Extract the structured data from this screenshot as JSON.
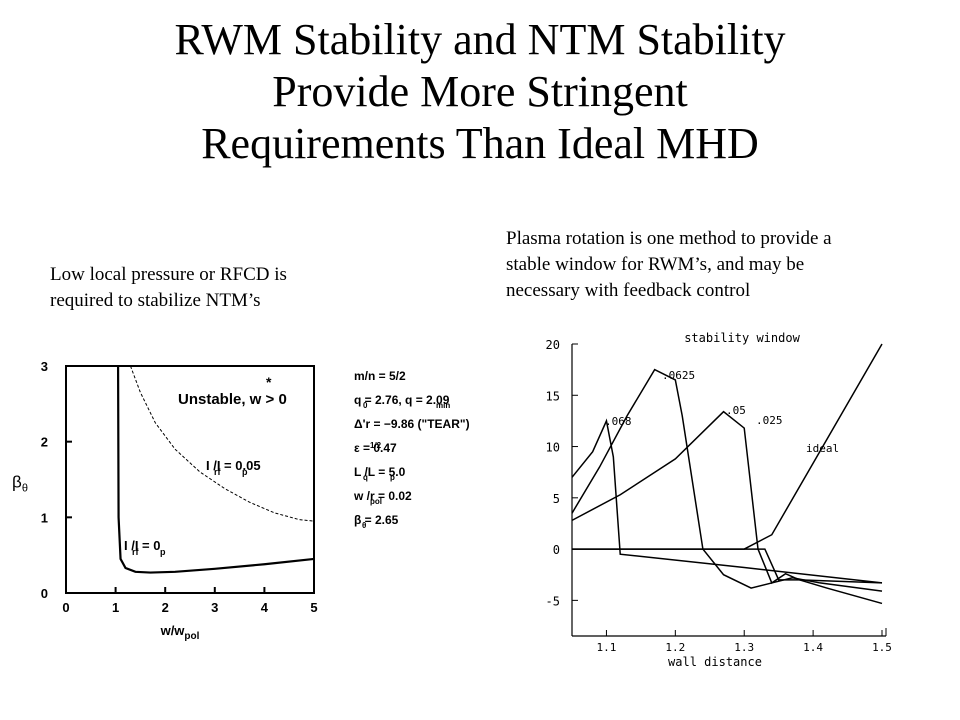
{
  "slide": {
    "title_lines": [
      "RWM Stability and NTM Stability",
      "Provide More Stringent",
      "Requirements Than Ideal MHD"
    ],
    "caption_left": [
      "Low local pressure or RFCD is",
      "required to stabilize NTM’s"
    ],
    "caption_right": [
      "Plasma rotation is one method to provide a",
      "stable window for RWM’s, and may be",
      "necessary with feedback control"
    ]
  },
  "chart_data": [
    {
      "type": "line",
      "xlabel": "w/w",
      "xlabel_sub": "pol",
      "ylabel": "β",
      "ylabel_sub": "θ",
      "xlim": [
        0,
        5
      ],
      "ylim": [
        0,
        3
      ],
      "x_ticks": [
        "0",
        "1",
        "2",
        "3",
        "4",
        "5"
      ],
      "y_ticks": [
        "0",
        "1",
        "2",
        "3"
      ],
      "annotations": {
        "unstable": "Unstable, w > 0",
        "label_005": "I  /I  = 0.05",
        "label_0": "I  /I  = 0",
        "label_sub_rf": "rf",
        "label_sub_p": "p"
      },
      "parameters": [
        "m/n = 5/2",
        "q  = 2.76, q     = 2.09",
        "Δ'r = −9.86 (\"TEAR\")",
        "ε    = 0.47",
        "L /L  = 5.0",
        "w   /r = 0.02",
        "β  = 2.65"
      ],
      "series": [
        {
          "name": "I  /I  = 0.05",
          "style": "dashed",
          "x": [
            1.3,
            1.5,
            1.8,
            2.2,
            2.7,
            3.2,
            3.7,
            4.2,
            4.7,
            5.0
          ],
          "y": [
            3.0,
            2.65,
            2.25,
            1.9,
            1.6,
            1.38,
            1.2,
            1.06,
            0.97,
            0.95
          ]
        },
        {
          "name": "I  /I  = 0",
          "style": "solid",
          "x": [
            1.05,
            1.06,
            1.1,
            1.2,
            1.4,
            1.7,
            2.2,
            3.0,
            4.0,
            5.0
          ],
          "y": [
            3.0,
            1.0,
            0.45,
            0.33,
            0.28,
            0.27,
            0.28,
            0.32,
            0.38,
            0.45
          ]
        }
      ]
    },
    {
      "type": "line",
      "title": "stability window",
      "xlabel": "wall distance",
      "xlim": [
        1.05,
        1.5
      ],
      "ylim": [
        -7.5,
        20
      ],
      "x_ticks": [
        "1.1",
        "1.2",
        "1.3",
        "1.4",
        "1.5"
      ],
      "y_ticks": [
        "20",
        "15",
        "10",
        "5",
        "0",
        "-5"
      ],
      "series": [
        {
          "name": ".068",
          "x": [
            1.05,
            1.08,
            1.1,
            1.11,
            1.12,
            1.3,
            1.5
          ],
          "y": [
            7,
            9.5,
            12.5,
            9,
            -0.5,
            -1.8,
            -3.3
          ]
        },
        {
          "name": ".0625",
          "x": [
            1.05,
            1.09,
            1.13,
            1.17,
            1.2,
            1.21,
            1.24,
            1.27,
            1.31,
            1.34,
            1.37,
            1.41,
            1.5
          ],
          "y": [
            3.5,
            8,
            13,
            17.5,
            16.5,
            13,
            0,
            -2.5,
            -3.8,
            -3.3,
            -2.8,
            -3.3,
            -4.1
          ]
        },
        {
          "name": ".05",
          "x": [
            1.05,
            1.12,
            1.2,
            1.27,
            1.3,
            1.32,
            1.34,
            1.36,
            1.38,
            1.42,
            1.5
          ],
          "y": [
            2.8,
            5.3,
            8.8,
            13.4,
            11.8,
            0,
            -3.3,
            -2.4,
            -3.0,
            -3.8,
            -5.3
          ]
        },
        {
          "name": ".025",
          "x": [
            1.05,
            1.3,
            1.33,
            1.35,
            1.38,
            1.5
          ],
          "y": [
            0,
            0,
            0,
            -3.0,
            -3.0,
            -3.3
          ]
        },
        {
          "name": "ideal",
          "x": [
            1.05,
            1.3,
            1.34,
            1.5
          ],
          "y": [
            0,
            0,
            1.4,
            20
          ]
        }
      ]
    }
  ]
}
